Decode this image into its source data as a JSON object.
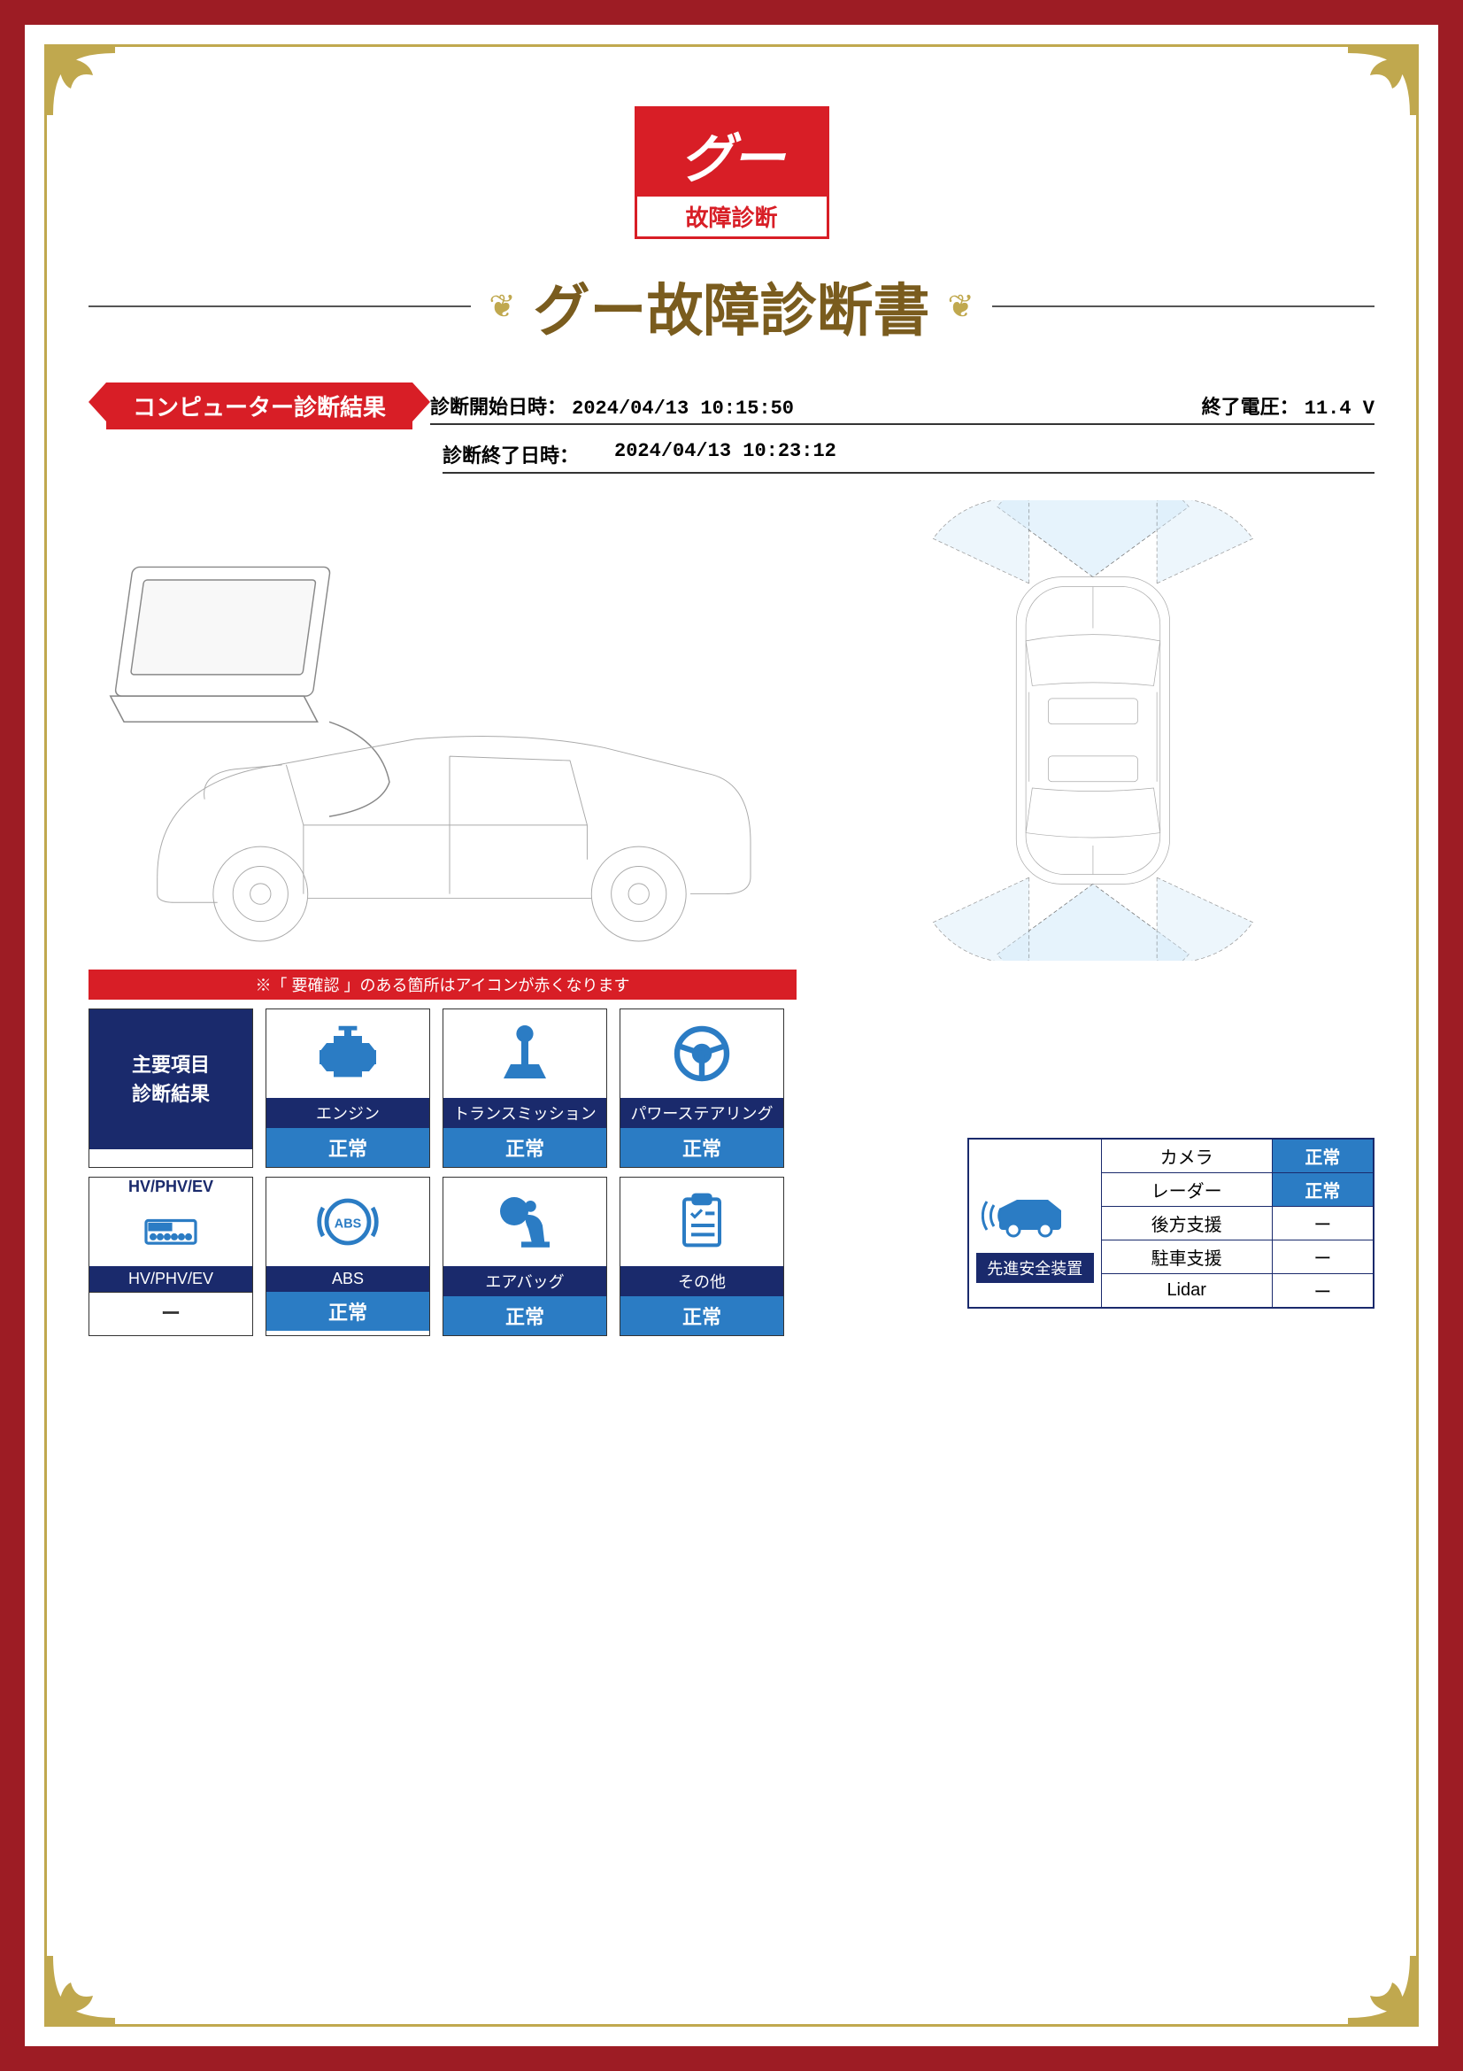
{
  "logo": {
    "brand": "グー",
    "sub": "故障診断"
  },
  "title": "グー故障診断書",
  "section_tag": "コンピューター診断結果",
  "meta": {
    "start_label": "診断開始日時：",
    "start_val": "2024/04/13 10:15:50",
    "volt_label": "終了電圧：",
    "volt_val": "11.4 V",
    "end_label": "診断終了日時：",
    "end_val": "2024/04/13 10:23:12"
  },
  "legend": "※「 要確認 」のある箇所はアイコンが赤くなります",
  "header_card": "主要項目\n診断結果",
  "colors": {
    "red": "#d81e26",
    "navy": "#1a2a6c",
    "blue": "#2b7cc4",
    "gold": "#c0a84e",
    "border_dark": "#9d1c24"
  },
  "cards_row1": [
    {
      "label": "エンジン",
      "status": "正常",
      "icon": "engine"
    },
    {
      "label": "トランスミッション",
      "status": "正常",
      "icon": "transmission"
    },
    {
      "label": "パワーステアリング",
      "status": "正常",
      "icon": "steering"
    }
  ],
  "cards_row2": [
    {
      "label": "HV/PHV/EV",
      "status": "ー",
      "icon": "hv",
      "whiteStatus": true,
      "topText": "HV/PHV/EV"
    },
    {
      "label": "ABS",
      "status": "正常",
      "icon": "abs"
    },
    {
      "label": "エアバッグ",
      "status": "正常",
      "icon": "airbag"
    },
    {
      "label": "その他",
      "status": "正常",
      "icon": "other"
    }
  ],
  "safety": {
    "header": "先進安全装置",
    "rows": [
      {
        "name": "カメラ",
        "status": "正常",
        "ok": true
      },
      {
        "name": "レーダー",
        "status": "正常",
        "ok": true
      },
      {
        "name": "後方支援",
        "status": "ー",
        "ok": false
      },
      {
        "name": "駐車支援",
        "status": "ー",
        "ok": false
      },
      {
        "name": "Lidar",
        "status": "ー",
        "ok": false
      }
    ]
  }
}
